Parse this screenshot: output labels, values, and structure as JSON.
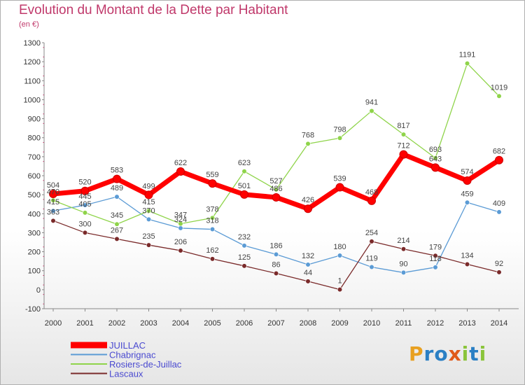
{
  "title": "Evolution du Montant de la Dette par Habitant",
  "unit": "(en €)",
  "logo": {
    "letters": [
      "P",
      "r",
      "o",
      "x",
      "i",
      "t",
      "i"
    ],
    "colors": [
      "#e8a020",
      "#2a7fc4",
      "#2a7fc4",
      "#e05a1a",
      "#8ac43a",
      "#2a7fc4",
      "#8ac43a"
    ]
  },
  "chart_data": {
    "type": "line",
    "title": "Evolution du Montant de la Dette par Habitant",
    "ylabel": "(en €)",
    "xlabel": "",
    "x": [
      "2000",
      "2001",
      "2002",
      "2003",
      "2004",
      "2005",
      "2006",
      "2007",
      "2008",
      "2009",
      "2010",
      "2011",
      "2012",
      "2013",
      "2014"
    ],
    "ylim": [
      -100,
      1300
    ],
    "yticks": [
      -100,
      0,
      100,
      200,
      300,
      400,
      500,
      600,
      700,
      800,
      900,
      1000,
      1100,
      1200,
      1300
    ],
    "grid": false,
    "legend": "bottom-left",
    "series": [
      {
        "name": "JUILLAC",
        "color": "#ff0000",
        "values": [
          504,
          520,
          583,
          499,
          622,
          559,
          501,
          486,
          426,
          539,
          468,
          712,
          643,
          574,
          682
        ]
      },
      {
        "name": "Chabrignac",
        "color": "#5b9bd5",
        "values": [
          415,
          445,
          489,
          370,
          324,
          318,
          232,
          186,
          132,
          180,
          119,
          90,
          118,
          459,
          409
        ]
      },
      {
        "name": "Rosiers-de-Juillac",
        "color": "#8fd44a",
        "values": [
          470,
          405,
          345,
          415,
          347,
          378,
          623,
          527,
          768,
          798,
          941,
          817,
          693,
          1191,
          1019
        ]
      },
      {
        "name": "Lascaux",
        "color": "#7a2a2a",
        "values": [
          363,
          300,
          267,
          235,
          206,
          162,
          125,
          86,
          44,
          1,
          254,
          214,
          179,
          134,
          92
        ]
      }
    ]
  }
}
